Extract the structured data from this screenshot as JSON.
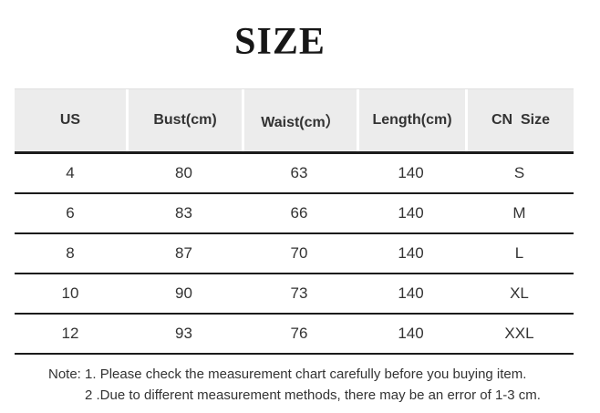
{
  "page": {
    "title": "SIZE"
  },
  "table": {
    "columns": [
      "US",
      "Bust(cm)",
      "Waist(cm）",
      "Length(cm)",
      "CN  Size"
    ],
    "rows": [
      [
        "4",
        "80",
        "63",
        "140",
        "S"
      ],
      [
        "6",
        "83",
        "66",
        "140",
        "M"
      ],
      [
        "8",
        "87",
        "70",
        "140",
        "L"
      ],
      [
        "10",
        "90",
        "73",
        "140",
        "XL"
      ],
      [
        "12",
        "93",
        "76",
        "140",
        "XXL"
      ]
    ]
  },
  "notes": {
    "line1": "Note: 1. Please check the measurement chart carefully before you buying item.",
    "line2": "2 .Due to different measurement methods, there may be an error of 1-3 cm."
  },
  "colors": {
    "header_bg": "#ececec",
    "rule": "#1b1b1b",
    "text": "#333333"
  }
}
